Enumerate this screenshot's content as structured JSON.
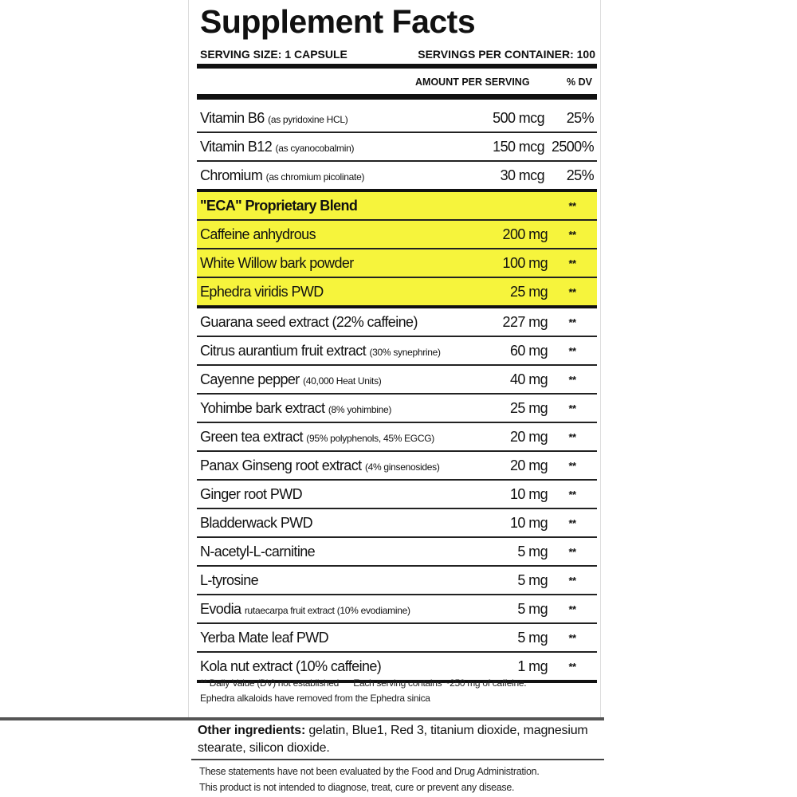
{
  "title": "Supplement Facts",
  "serving_size": "SERVING SIZE: 1 CAPSULE",
  "servings_per_container": "SERVINGS PER CONTAINER: 100",
  "col_amount": "AMOUNT PER SERVING",
  "col_dv": "% DV",
  "highlight_color": "#f6f43c",
  "rows": [
    {
      "name": "Vitamin B6",
      "note": "(as pyridoxine HCL)",
      "amount": "500 mcg",
      "dv": "25%"
    },
    {
      "name": "Vitamin B12",
      "note": "(as cyanocobalmin)",
      "amount": "150 mcg",
      "dv": "2500%"
    },
    {
      "name": "Chromium",
      "note": "(as chromium picolinate)",
      "amount": "30 mcg",
      "dv": "25%"
    },
    {
      "name": "\"ECA\" Proprietary Blend",
      "note": "",
      "amount": "",
      "dv": "**"
    },
    {
      "name": "Caffeine anhydrous",
      "note": "",
      "amount": "200 mg",
      "dv": "**"
    },
    {
      "name": "White Willow bark powder",
      "note": "",
      "amount": "100 mg",
      "dv": "**"
    },
    {
      "name": "Ephedra viridis PWD",
      "note": "",
      "amount": "25 mg",
      "dv": "**"
    },
    {
      "name": "Guarana seed extract (22% caffeine)",
      "note": "",
      "amount": "227 mg",
      "dv": "**"
    },
    {
      "name": "Citrus aurantium fruit extract",
      "note": "(30% synephrine)",
      "amount": "60 mg",
      "dv": "**"
    },
    {
      "name": "Cayenne pepper",
      "note": "(40,000 Heat Units)",
      "amount": "40 mg",
      "dv": "**"
    },
    {
      "name": "Yohimbe bark extract",
      "note": "(8% yohimbine)",
      "amount": "25 mg",
      "dv": "**"
    },
    {
      "name": "Green tea extract",
      "note": "(95% polyphenols, 45% EGCG)",
      "amount": "20 mg",
      "dv": "**"
    },
    {
      "name": "Panax Ginseng root extract",
      "note": "(4% ginsenosides)",
      "amount": "20 mg",
      "dv": "**"
    },
    {
      "name": "Ginger root PWD",
      "note": "",
      "amount": "10 mg",
      "dv": "**"
    },
    {
      "name": "Bladderwack PWD",
      "note": "",
      "amount": "10 mg",
      "dv": "**"
    },
    {
      "name": "N-acetyl-L-carnitine",
      "note": "",
      "amount": "5 mg",
      "dv": "**"
    },
    {
      "name": "L-tyrosine",
      "note": "",
      "amount": "5 mg",
      "dv": "**"
    },
    {
      "name": "Evodia",
      "note": "rutaecarpa fruit extract (10% evodiamine)",
      "amount": "5 mg",
      "dv": "**"
    },
    {
      "name": "Yerba Mate leaf PWD",
      "note": "",
      "amount": "5 mg",
      "dv": "**"
    },
    {
      "name": "Kola nut extract (10% caffeine)",
      "note": "",
      "amount": "1 mg",
      "dv": "**"
    }
  ],
  "footnote_1": "** Daily Value (DV) not established      Each serving contains ~250 mg of caffeine.",
  "footnote_2": "Ephedra alkaloids have removed from the Ephedra sinica",
  "other_label": "Other ingredients:",
  "other_text": " gelatin, Blue1, Red 3, titanium dioxide, magnesium stearate, silicon dioxide.",
  "disclaimer_1": "These statements have not been evaluated by the Food and Drug Administration.",
  "disclaimer_2": "This product is not intended to diagnose, treat, cure or prevent any disease."
}
